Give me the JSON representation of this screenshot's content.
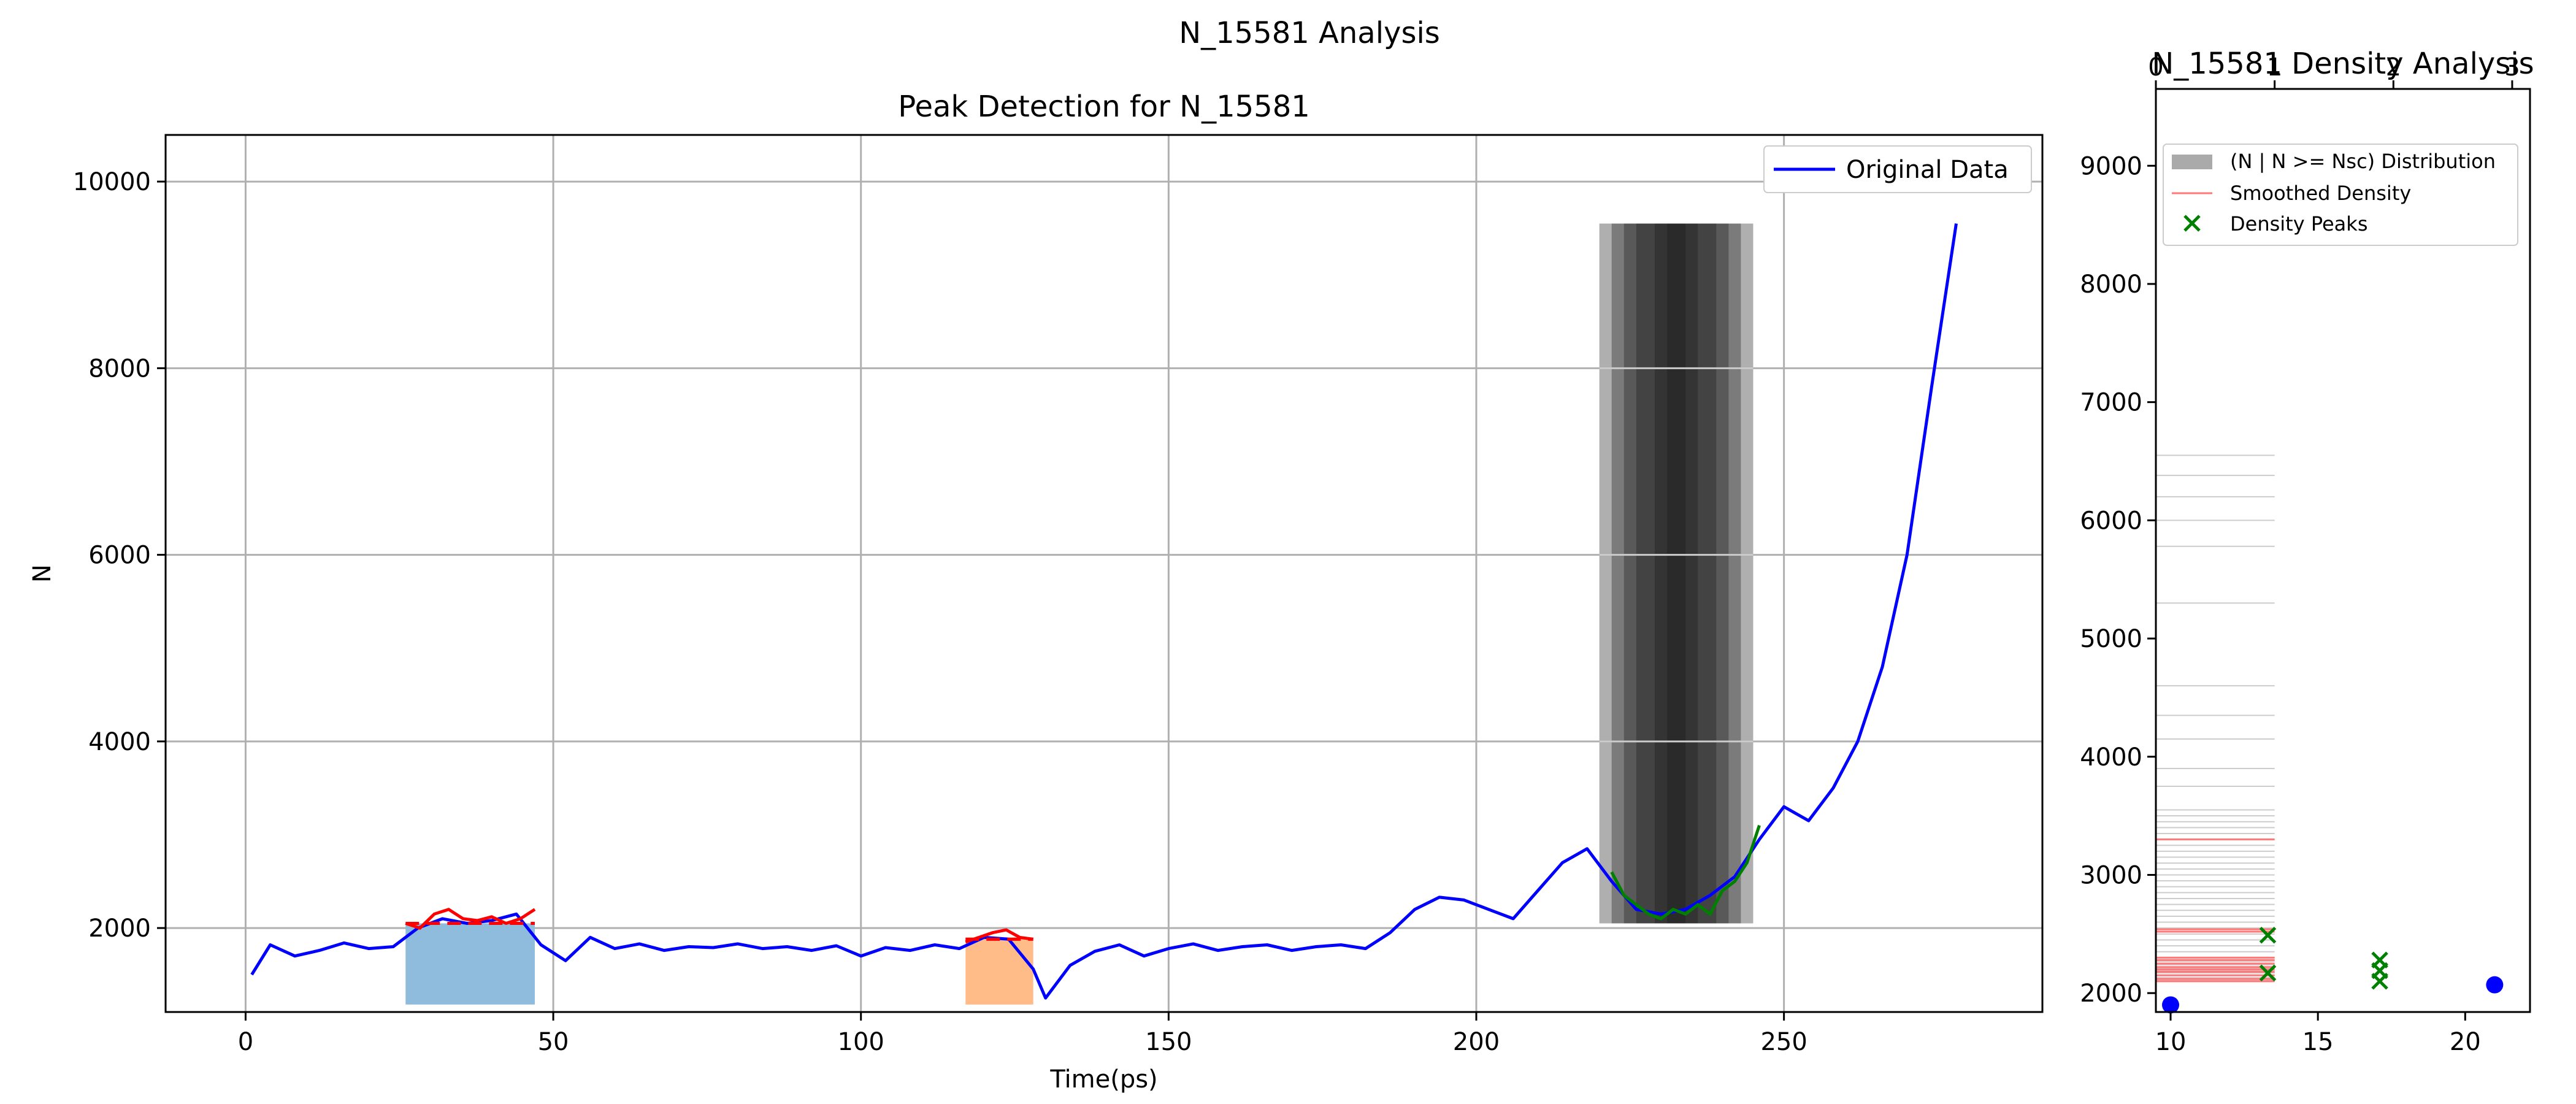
{
  "figure": {
    "title": "N_15581 Analysis"
  },
  "colors": {
    "original_data": "#0000ff",
    "peak_segment": "#ff0000",
    "descent_segment": "#008000",
    "fill_peak_1": "#8fbcdd",
    "fill_peak_2": "#ffbb88",
    "dark_band": "#1a1a1a",
    "grid": "#b0b0b0",
    "density_peak": "#008000",
    "density_bar": "#aaaaaa",
    "smoothed_density": "#ff7777"
  },
  "chart_data": [
    {
      "type": "line",
      "title": "Peak Detection for N_15581",
      "xlabel": "Time(ps)",
      "ylabel": "N",
      "xlim": [
        -13,
        292
      ],
      "ylim": [
        1100,
        10500
      ],
      "xticks": [
        0,
        50,
        100,
        150,
        200,
        250
      ],
      "yticks": [
        2000,
        4000,
        6000,
        8000,
        10000
      ],
      "grid": true,
      "legend": {
        "position": "top-right",
        "entries": [
          "Original Data"
        ]
      },
      "series": [
        {
          "name": "Original Data",
          "color": "#0000ff",
          "x": [
            1,
            4,
            8,
            12,
            16,
            20,
            24,
            28,
            32,
            36,
            40,
            44,
            48,
            52,
            56,
            60,
            64,
            68,
            72,
            76,
            80,
            84,
            88,
            92,
            96,
            100,
            104,
            108,
            112,
            116,
            120,
            124,
            128,
            130,
            134,
            138,
            142,
            146,
            150,
            154,
            158,
            162,
            166,
            170,
            174,
            178,
            182,
            186,
            190,
            194,
            198,
            202,
            206,
            210,
            214,
            218,
            222,
            226,
            230,
            234,
            238,
            242,
            246,
            250,
            254,
            258,
            262,
            266,
            270,
            274,
            278
          ],
          "y": [
            1500,
            1820,
            1700,
            1760,
            1840,
            1780,
            1800,
            2000,
            2100,
            2050,
            2080,
            2150,
            1820,
            1650,
            1900,
            1780,
            1830,
            1760,
            1800,
            1790,
            1830,
            1780,
            1800,
            1760,
            1810,
            1700,
            1790,
            1760,
            1820,
            1780,
            1900,
            1880,
            1560,
            1250,
            1600,
            1750,
            1820,
            1700,
            1780,
            1830,
            1760,
            1800,
            1820,
            1760,
            1800,
            1820,
            1780,
            1950,
            2200,
            2330,
            2300,
            2200,
            2100,
            2400,
            2700,
            2850,
            2500,
            2200,
            2150,
            2200,
            2350,
            2550,
            2950,
            3300,
            3150,
            3500,
            4000,
            4800,
            6000,
            7800,
            9550
          ]
        }
      ],
      "peak_regions": [
        {
          "x_start": 26,
          "x_end": 47,
          "fill_top": 2050,
          "fill_bottom": 1180,
          "level": 2050,
          "y": [
            2050,
            2000,
            2150,
            2200,
            2100,
            2080,
            2120,
            2050,
            2100,
            2200
          ]
        },
        {
          "x_start": 117,
          "x_end": 128,
          "fill_top": 1900,
          "fill_bottom": 1180,
          "level": 1880,
          "y": [
            1850,
            1900,
            1950,
            1980,
            1900,
            1880
          ]
        }
      ],
      "descent_segment": {
        "x": [
          222,
          224,
          226,
          228,
          230,
          232,
          234,
          236,
          238,
          240,
          242,
          244,
          246
        ],
        "y": [
          2600,
          2350,
          2250,
          2150,
          2100,
          2200,
          2150,
          2250,
          2150,
          2400,
          2500,
          2700,
          3100
        ]
      },
      "dark_band": {
        "x_start": 220,
        "x_end": 245,
        "y_bottom": 2050,
        "y_top": 9550,
        "layers": [
          [
            220,
            245
          ],
          [
            222,
            243
          ],
          [
            224,
            241
          ],
          [
            226,
            239
          ],
          [
            229,
            236
          ],
          [
            231,
            234
          ]
        ]
      }
    },
    {
      "type": "histogram",
      "title": "N_15581 Density Analysis",
      "orientation": "horizontal",
      "xlim_bottom": [
        9.5,
        22.2
      ],
      "xticks_bottom": [
        10,
        15,
        20
      ],
      "xlim_top": [
        0,
        3.15
      ],
      "xticks_top": [
        0,
        1,
        2,
        3
      ],
      "ylim": [
        1840,
        9650
      ],
      "yticks": [
        2000,
        3000,
        4000,
        5000,
        6000,
        7000,
        8000,
        9000
      ],
      "grid": false,
      "legend": {
        "position": "top-left",
        "entries": [
          "(N | N >= Nsc) Distribution",
          "Smoothed Density",
          "Density Peaks"
        ]
      },
      "distribution_levels": [
        2110,
        2130,
        2150,
        2170,
        2190,
        2210,
        2240,
        2270,
        2300,
        2350,
        2400,
        2450,
        2500,
        2550,
        2600,
        2650,
        2700,
        2750,
        2800,
        2850,
        2900,
        2950,
        3000,
        3050,
        3100,
        3150,
        3200,
        3250,
        3300,
        3350,
        3400,
        3450,
        3500,
        3550,
        3750,
        3900,
        4150,
        4350,
        4600,
        5300,
        5780,
        6000,
        6200,
        6380,
        6550
      ],
      "distribution_width": 1,
      "smoothed_density_levels": [
        2100,
        2120,
        2150,
        2180,
        2200,
        2220,
        2250,
        2280,
        2300,
        2520,
        2540,
        3300
      ],
      "smoothed_density_width": 1,
      "density_peaks": [
        {
          "x": 13.3,
          "y": 2170
        },
        {
          "x": 13.3,
          "y": 2490
        },
        {
          "x": 17.1,
          "y": 2100
        },
        {
          "x": 17.1,
          "y": 2190
        },
        {
          "x": 17.1,
          "y": 2280
        }
      ],
      "extra_points": [
        {
          "x": 10.0,
          "y": 1900
        },
        {
          "x": 21.0,
          "y": 2070
        }
      ]
    }
  ]
}
